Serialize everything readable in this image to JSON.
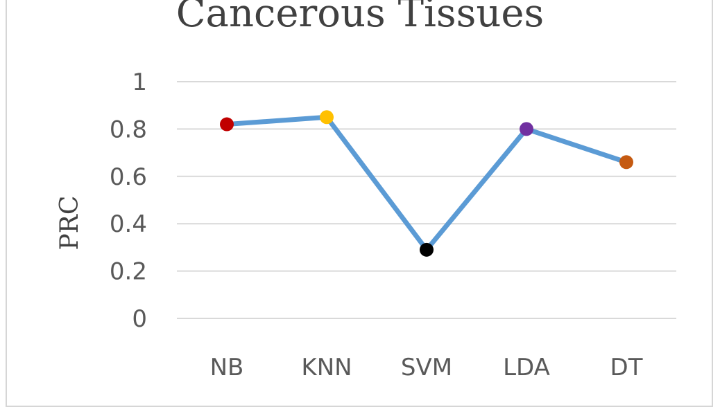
{
  "chart_data": {
    "type": "line",
    "title": "Cancerous Tissues",
    "xlabel": "",
    "ylabel": "PRC",
    "ylim": [
      0,
      1
    ],
    "yticks": [
      "0",
      "0.2",
      "0.4",
      "0.6",
      "0.8",
      "1"
    ],
    "grid": true,
    "categories": [
      "NB",
      "KNN",
      "SVM",
      "LDA",
      "DT"
    ],
    "series": [
      {
        "values": [
          0.82,
          0.85,
          0.29,
          0.8,
          0.66
        ],
        "line_color": "#5b9bd5",
        "point_colors": [
          "#c00000",
          "#ffc000",
          "#000000",
          "#7030a0",
          "#c55a11"
        ]
      }
    ]
  }
}
